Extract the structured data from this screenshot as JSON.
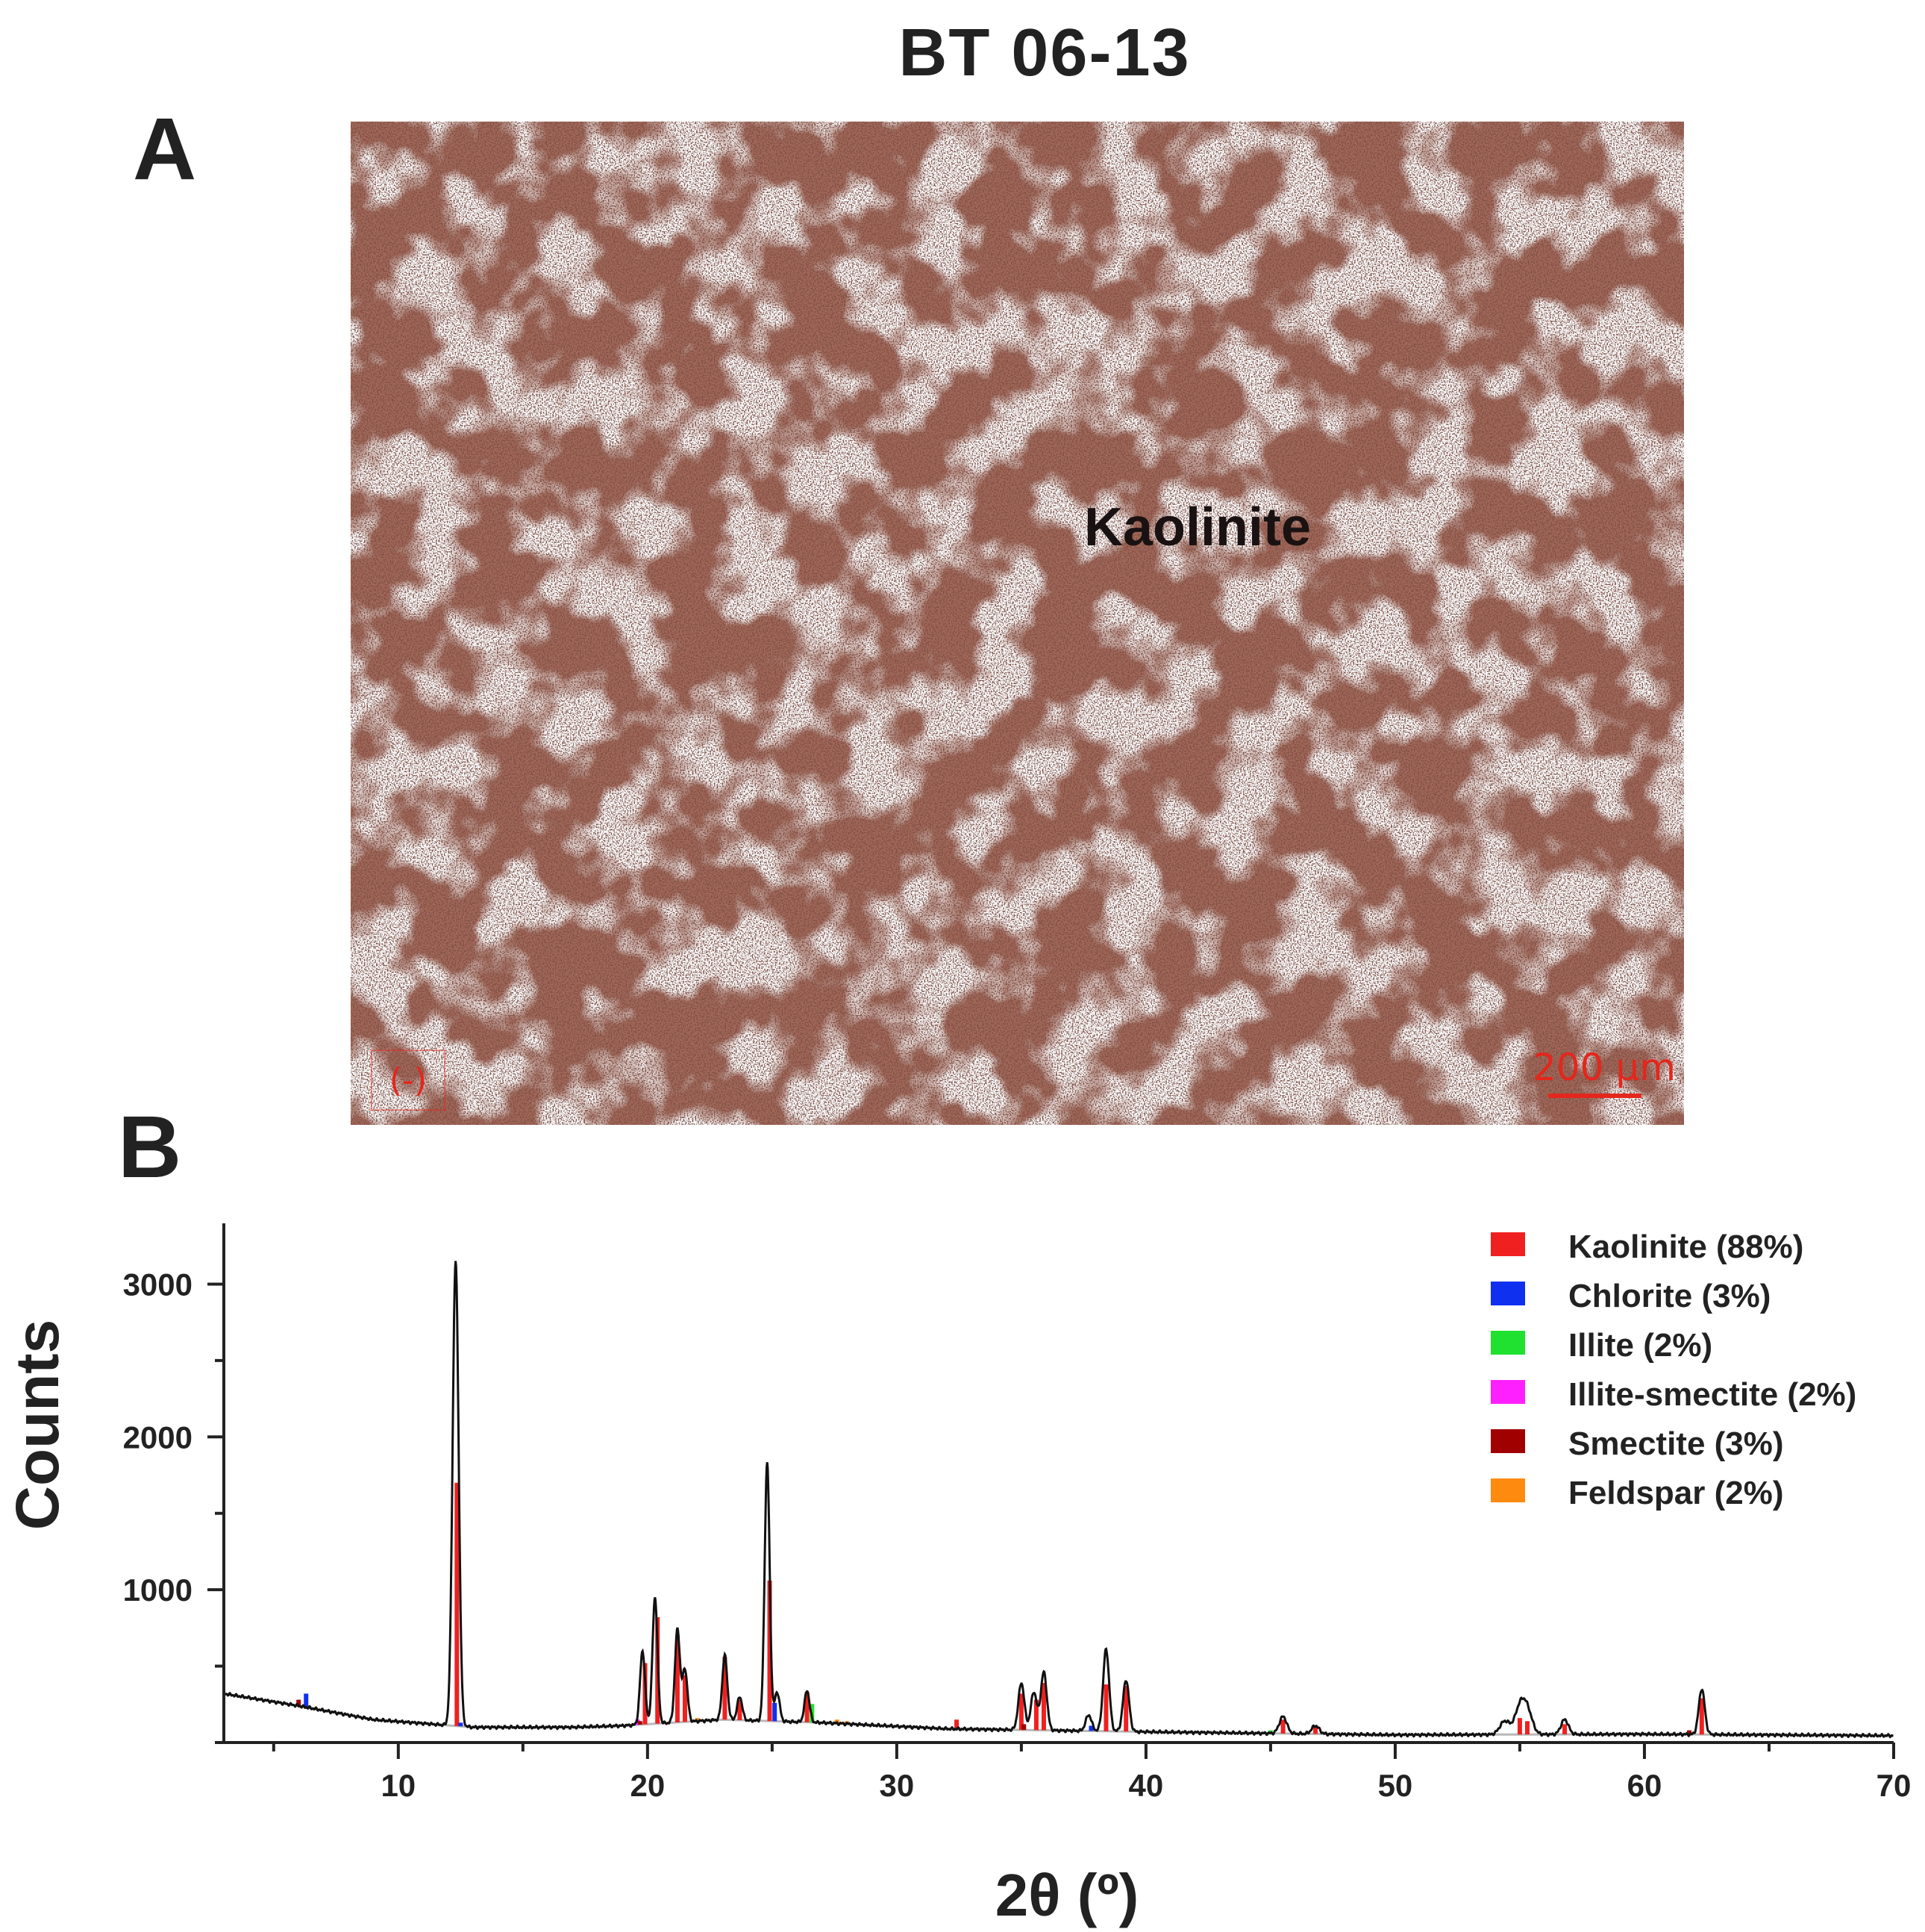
{
  "title": "BT 06-13",
  "panel_a": {
    "letter": "A",
    "label": "Kaolinite",
    "polarizer_mark": "(-)",
    "scale_bar": "200 μm",
    "colors": {
      "matrix": "#a2695a",
      "highlight": "#fbf3f0",
      "annotation": "#e4261c"
    }
  },
  "panel_b": {
    "letter": "B"
  },
  "chart_data": {
    "type": "line",
    "xlabel": "2θ (º)",
    "ylabel": "Counts",
    "xlim": [
      3,
      70
    ],
    "ylim": [
      0,
      3300
    ],
    "xticks": [
      10,
      20,
      30,
      40,
      50,
      60,
      70
    ],
    "yticks": [
      1000,
      2000,
      3000
    ],
    "legend_placement": "top-right",
    "grid": false,
    "background_curve": [
      [
        3,
        320
      ],
      [
        6,
        240
      ],
      [
        9,
        150
      ],
      [
        13,
        100
      ],
      [
        17,
        100
      ],
      [
        19,
        110
      ],
      [
        23,
        150
      ],
      [
        27,
        130
      ],
      [
        32,
        90
      ],
      [
        40,
        70
      ],
      [
        50,
        50
      ],
      [
        60,
        55
      ],
      [
        70,
        45
      ]
    ],
    "pattern_peaks": [
      {
        "x": 12.3,
        "y": 3150,
        "w": 0.12
      },
      {
        "x": 19.8,
        "y": 600,
        "w": 0.1
      },
      {
        "x": 20.3,
        "y": 950,
        "w": 0.1
      },
      {
        "x": 21.2,
        "y": 740,
        "w": 0.1
      },
      {
        "x": 21.5,
        "y": 480,
        "w": 0.1
      },
      {
        "x": 23.1,
        "y": 570,
        "w": 0.1
      },
      {
        "x": 23.7,
        "y": 300,
        "w": 0.1
      },
      {
        "x": 24.8,
        "y": 1830,
        "w": 0.1
      },
      {
        "x": 25.2,
        "y": 330,
        "w": 0.1
      },
      {
        "x": 26.4,
        "y": 340,
        "w": 0.1
      },
      {
        "x": 35.0,
        "y": 390,
        "w": 0.12
      },
      {
        "x": 35.5,
        "y": 330,
        "w": 0.12
      },
      {
        "x": 35.9,
        "y": 460,
        "w": 0.12
      },
      {
        "x": 37.7,
        "y": 180,
        "w": 0.12
      },
      {
        "x": 38.4,
        "y": 610,
        "w": 0.12
      },
      {
        "x": 39.2,
        "y": 410,
        "w": 0.12
      },
      {
        "x": 45.5,
        "y": 170,
        "w": 0.15
      },
      {
        "x": 46.8,
        "y": 110,
        "w": 0.15
      },
      {
        "x": 54.4,
        "y": 140,
        "w": 0.2
      },
      {
        "x": 55.0,
        "y": 220,
        "w": 0.2
      },
      {
        "x": 55.3,
        "y": 200,
        "w": 0.2
      },
      {
        "x": 56.8,
        "y": 150,
        "w": 0.15
      },
      {
        "x": 62.3,
        "y": 350,
        "w": 0.12
      }
    ],
    "sticks": {
      "Kaolinite": [
        [
          12.35,
          1700
        ],
        [
          19.9,
          520
        ],
        [
          20.4,
          820
        ],
        [
          21.2,
          700
        ],
        [
          21.5,
          440
        ],
        [
          23.1,
          560
        ],
        [
          23.7,
          280
        ],
        [
          24.9,
          1060
        ],
        [
          26.4,
          330
        ],
        [
          32.4,
          150
        ],
        [
          35.0,
          320
        ],
        [
          35.6,
          280
        ],
        [
          35.9,
          390
        ],
        [
          38.4,
          380
        ],
        [
          39.2,
          370
        ],
        [
          45.5,
          150
        ],
        [
          46.8,
          100
        ],
        [
          55.0,
          160
        ],
        [
          55.3,
          140
        ],
        [
          56.8,
          120
        ],
        [
          62.3,
          290
        ]
      ],
      "Chlorite": [
        [
          6.3,
          320
        ],
        [
          12.5,
          130
        ],
        [
          25.1,
          120
        ],
        [
          37.8,
          110
        ]
      ],
      "Illite": [
        [
          8.8,
          160
        ],
        [
          17.8,
          110
        ],
        [
          26.6,
          120
        ],
        [
          45.0,
          80
        ]
      ],
      "Illite-smectite": [
        [
          5.2,
          270
        ],
        [
          19.6,
          150
        ]
      ],
      "Smectite": [
        [
          6.0,
          280
        ],
        [
          19.7,
          140
        ],
        [
          35.1,
          120
        ],
        [
          61.8,
          80
        ]
      ],
      "Feldspar": [
        [
          22.0,
          160
        ],
        [
          27.6,
          150
        ],
        [
          28.0,
          140
        ]
      ]
    },
    "series": [
      {
        "name": "Kaolinite (88%)",
        "color": "#f02020"
      },
      {
        "name": "Chlorite (3%)",
        "color": "#1030f0"
      },
      {
        "name": "Illite (2%)",
        "color": "#20e030"
      },
      {
        "name": "Illite-smectite (2%)",
        "color": "#ff20ff"
      },
      {
        "name": "Smectite (3%)",
        "color": "#a00000"
      },
      {
        "name": "Feldspar (2%)",
        "color": "#ff8a10"
      }
    ]
  }
}
